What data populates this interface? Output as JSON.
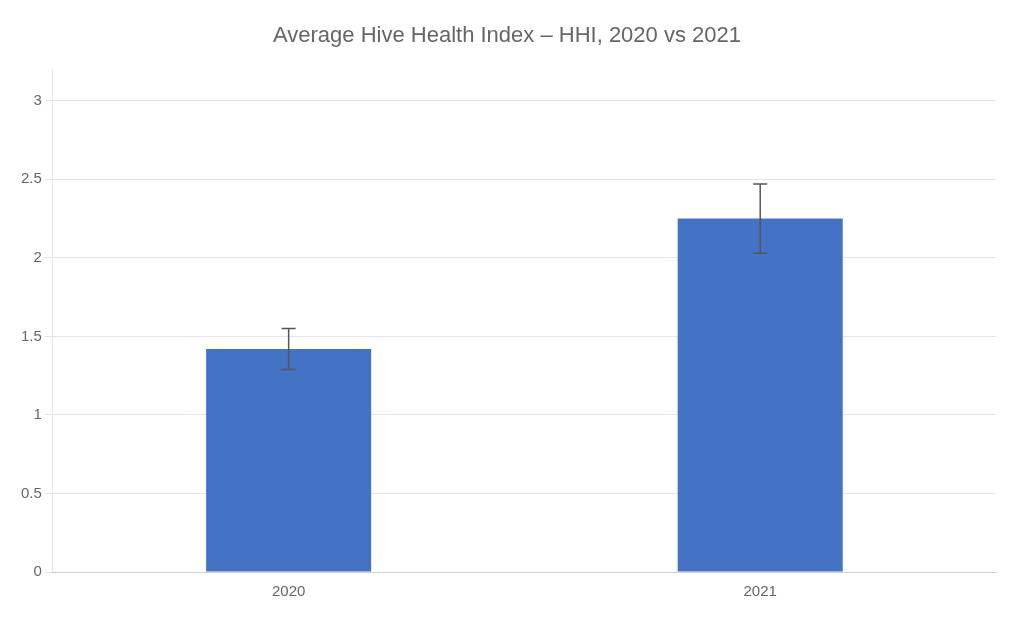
{
  "chart_data": {
    "type": "bar",
    "title": "Average Hive Health Index – HHI, 2020 vs 2021",
    "categories": [
      "2020",
      "2021"
    ],
    "values": [
      1.42,
      2.25
    ],
    "errors": [
      0.13,
      0.22
    ],
    "color": "#4472C4",
    "ylim": [
      0,
      3.2
    ],
    "yticks": [
      0,
      0.5,
      1,
      1.5,
      2,
      2.5,
      3
    ],
    "grid": true
  }
}
